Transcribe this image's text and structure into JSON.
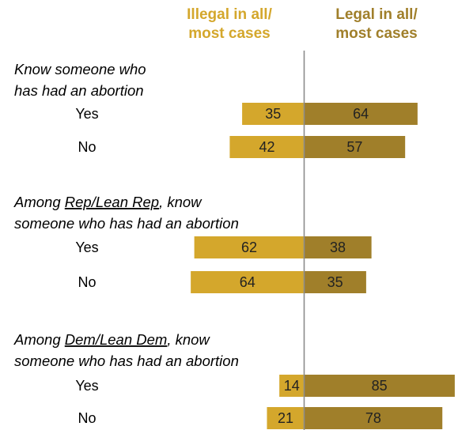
{
  "chart_data": {
    "type": "bar",
    "orientation": "horizontal-diverging",
    "series": [
      {
        "name": "Illegal in all/ most cases",
        "header_lines": [
          "Illegal in all/",
          "most cases"
        ],
        "color": "#d4a72c",
        "key": "illegal"
      },
      {
        "name": "Legal in all/ most cases",
        "header_lines": [
          "Legal in all/",
          "most cases"
        ],
        "color": "#a07f2a",
        "key": "legal"
      }
    ],
    "groups": [
      {
        "title_parts": [
          [
            {
              "text": "Know someone who",
              "underline": false
            }
          ],
          [
            {
              "text": "has had an abortion",
              "underline": false
            }
          ]
        ],
        "rows": [
          {
            "label": "Yes",
            "illegal": 35,
            "legal": 64
          },
          {
            "label": "No",
            "illegal": 42,
            "legal": 57
          }
        ]
      },
      {
        "title_parts": [
          [
            {
              "text": "Among ",
              "underline": false
            },
            {
              "text": "Rep/Lean Rep",
              "underline": true
            },
            {
              "text": ", know",
              "underline": false
            }
          ],
          [
            {
              "text": "someone who has had an abortion",
              "underline": false
            }
          ]
        ],
        "rows": [
          {
            "label": "Yes",
            "illegal": 62,
            "legal": 38
          },
          {
            "label": "No",
            "illegal": 64,
            "legal": 35
          }
        ]
      },
      {
        "title_parts": [
          [
            {
              "text": "Among ",
              "underline": false
            },
            {
              "text": "Dem/Lean Dem",
              "underline": true
            },
            {
              "text": ", know",
              "underline": false
            }
          ],
          [
            {
              "text": "someone who has had an abortion",
              "underline": false
            }
          ]
        ],
        "rows": [
          {
            "label": "Yes",
            "illegal": 14,
            "legal": 85
          },
          {
            "label": "No",
            "illegal": 21,
            "legal": 78
          }
        ]
      }
    ],
    "xlim": [
      0,
      100
    ],
    "grid": false,
    "legend": "top"
  }
}
